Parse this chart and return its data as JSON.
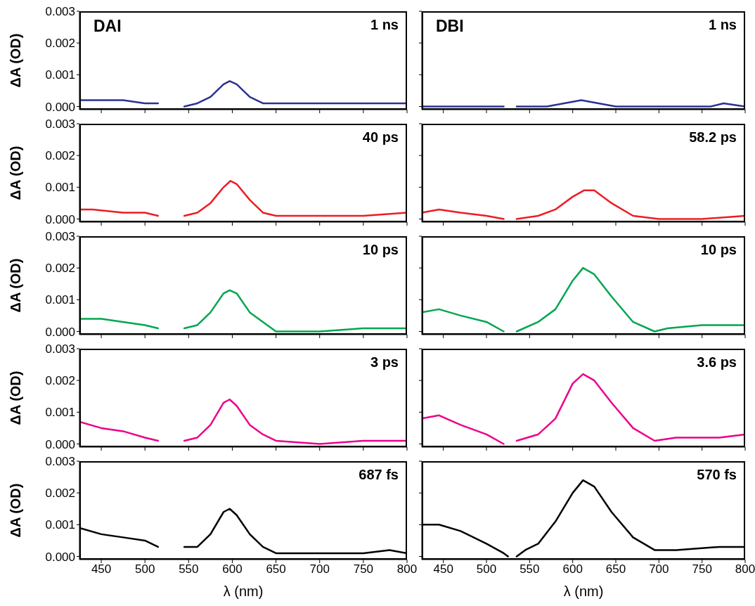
{
  "chart_data": [
    {
      "type": "line",
      "ylabel": "ΔA (OD)",
      "annotations": [
        "DAI",
        "1 ns"
      ],
      "color": "#2b3192",
      "xlim": [
        425,
        800
      ],
      "ylim": [
        -0.0001,
        0.003
      ],
      "yticks": [
        {
          "value": 0,
          "label": "0.000"
        },
        {
          "value": 0.001,
          "label": "0.001"
        },
        {
          "value": 0.002,
          "label": "0.002"
        },
        {
          "value": 0.003,
          "label": "0.003"
        }
      ],
      "xticks": [
        450,
        500,
        550,
        600,
        650,
        700,
        750,
        800
      ],
      "tick_labels": "y",
      "x": [
        425,
        450,
        475,
        500,
        515,
        530,
        545,
        560,
        575,
        590,
        597,
        605,
        620,
        635,
        650,
        700,
        750,
        800
      ],
      "values": [
        0.0002,
        0.0002,
        0.0002,
        0.0001,
        0.0001,
        null,
        0,
        0.0001,
        0.0003,
        0.0007,
        0.0008,
        0.0007,
        0.0003,
        0.0001,
        0.0001,
        0.0001,
        0.0001,
        0.0001
      ]
    },
    {
      "type": "line",
      "annotations": [
        "DBI",
        "1 ns"
      ],
      "color": "#2b3192",
      "xlim": [
        425,
        800
      ],
      "ylim": [
        -0.0001,
        0.003
      ],
      "yticks": [
        0,
        0.001,
        0.002,
        0.003
      ],
      "xticks": [
        450,
        500,
        550,
        600,
        650,
        700,
        750,
        800
      ],
      "tick_labels": false,
      "x": [
        425,
        500,
        520,
        528,
        535,
        570,
        590,
        610,
        630,
        650,
        700,
        760,
        775,
        800
      ],
      "values": [
        0,
        0,
        0,
        null,
        0,
        0,
        0.0001,
        0.0002,
        0.0001,
        0,
        0,
        0,
        0.0001,
        0
      ]
    },
    {
      "type": "line",
      "ylabel": "ΔA (OD)",
      "annotations": [
        "40 ps"
      ],
      "color": "#ed1c24",
      "xlim": [
        425,
        800
      ],
      "ylim": [
        -0.0001,
        0.003
      ],
      "yticks": [
        {
          "value": 0,
          "label": "0.000"
        },
        {
          "value": 0.001,
          "label": "0.001"
        },
        {
          "value": 0.002,
          "label": "0.002"
        },
        {
          "value": 0.003,
          "label": "0.003"
        }
      ],
      "xticks": [
        450,
        500,
        550,
        600,
        650,
        700,
        750,
        800
      ],
      "tick_labels": "y",
      "x": [
        425,
        440,
        475,
        500,
        515,
        530,
        545,
        560,
        575,
        590,
        598,
        605,
        620,
        635,
        650,
        700,
        750,
        800
      ],
      "values": [
        0.0003,
        0.0003,
        0.0002,
        0.0002,
        0.0001,
        null,
        0.0001,
        0.0002,
        0.0005,
        0.001,
        0.0012,
        0.0011,
        0.0006,
        0.0002,
        0.0001,
        0.0001,
        0.0001,
        0.0002
      ]
    },
    {
      "type": "line",
      "annotations": [
        "58.2 ps"
      ],
      "color": "#ed1c24",
      "xlim": [
        425,
        800
      ],
      "ylim": [
        -0.0001,
        0.003
      ],
      "yticks": [
        0,
        0.001,
        0.002,
        0.003
      ],
      "xticks": [
        450,
        500,
        550,
        600,
        650,
        700,
        750,
        800
      ],
      "tick_labels": false,
      "x": [
        425,
        445,
        470,
        500,
        520,
        528,
        535,
        560,
        580,
        600,
        613,
        625,
        645,
        670,
        700,
        750,
        800
      ],
      "values": [
        0.0002,
        0.0003,
        0.0002,
        0.0001,
        0,
        null,
        0,
        0.0001,
        0.0003,
        0.0007,
        0.0009,
        0.0009,
        0.0005,
        0.0001,
        0,
        0,
        0.0001
      ]
    },
    {
      "type": "line",
      "ylabel": "ΔA (OD)",
      "annotations": [
        "10 ps"
      ],
      "color": "#00a651",
      "xlim": [
        425,
        800
      ],
      "ylim": [
        -0.0001,
        0.003
      ],
      "yticks": [
        {
          "value": 0,
          "label": "0.000"
        },
        {
          "value": 0.001,
          "label": "0.001"
        },
        {
          "value": 0.002,
          "label": "0.002"
        },
        {
          "value": 0.003,
          "label": "0.003"
        }
      ],
      "xticks": [
        450,
        500,
        550,
        600,
        650,
        700,
        750,
        800
      ],
      "tick_labels": "y",
      "x": [
        425,
        450,
        475,
        500,
        515,
        530,
        545,
        560,
        575,
        590,
        597,
        605,
        620,
        635,
        650,
        700,
        750,
        785,
        800
      ],
      "values": [
        0.0004,
        0.0004,
        0.0003,
        0.0002,
        0.0001,
        null,
        0.0001,
        0.0002,
        0.0006,
        0.0012,
        0.0013,
        0.0012,
        0.0006,
        0.0003,
        0,
        0,
        0.0001,
        0.0001,
        0.0001
      ]
    },
    {
      "type": "line",
      "annotations": [
        "10 ps"
      ],
      "color": "#00a651",
      "xlim": [
        425,
        800
      ],
      "ylim": [
        -0.0001,
        0.003
      ],
      "yticks": [
        0,
        0.001,
        0.002,
        0.003
      ],
      "xticks": [
        450,
        500,
        550,
        600,
        650,
        700,
        750,
        800
      ],
      "tick_labels": false,
      "x": [
        425,
        445,
        470,
        500,
        520,
        528,
        535,
        560,
        580,
        600,
        612,
        625,
        645,
        670,
        695,
        710,
        750,
        800
      ],
      "values": [
        0.0006,
        0.0007,
        0.0005,
        0.0003,
        0,
        null,
        0,
        0.0003,
        0.0007,
        0.0016,
        0.002,
        0.0018,
        0.0011,
        0.0003,
        0,
        0.0001,
        0.0002,
        0.0002
      ]
    },
    {
      "type": "line",
      "ylabel": "ΔA (OD)",
      "annotations": [
        "3 ps"
      ],
      "color": "#ec008c",
      "xlim": [
        425,
        800
      ],
      "ylim": [
        -0.0001,
        0.003
      ],
      "yticks": [
        {
          "value": 0,
          "label": "0.000"
        },
        {
          "value": 0.001,
          "label": "0.001"
        },
        {
          "value": 0.002,
          "label": "0.002"
        },
        {
          "value": 0.003,
          "label": "0.003"
        }
      ],
      "xticks": [
        450,
        500,
        550,
        600,
        650,
        700,
        750,
        800
      ],
      "tick_labels": "y",
      "x": [
        425,
        450,
        475,
        500,
        515,
        530,
        545,
        560,
        575,
        590,
        597,
        605,
        620,
        635,
        650,
        700,
        750,
        800
      ],
      "values": [
        0.0007,
        0.0005,
        0.0004,
        0.0002,
        0.0001,
        null,
        0.0001,
        0.0002,
        0.0006,
        0.0013,
        0.0014,
        0.0012,
        0.0006,
        0.0003,
        0.0001,
        0,
        0.0001,
        0.0001
      ]
    },
    {
      "type": "line",
      "annotations": [
        "3.6 ps"
      ],
      "color": "#ec008c",
      "xlim": [
        425,
        800
      ],
      "ylim": [
        -0.0001,
        0.003
      ],
      "yticks": [
        0,
        0.001,
        0.002,
        0.003
      ],
      "xticks": [
        450,
        500,
        550,
        600,
        650,
        700,
        750,
        800
      ],
      "tick_labels": false,
      "x": [
        425,
        445,
        470,
        500,
        520,
        528,
        535,
        560,
        580,
        600,
        612,
        625,
        645,
        670,
        695,
        720,
        770,
        800
      ],
      "values": [
        0.0008,
        0.0009,
        0.0006,
        0.0003,
        0,
        null,
        0.0001,
        0.0003,
        0.0008,
        0.0019,
        0.0022,
        0.002,
        0.0013,
        0.0005,
        0.0001,
        0.0002,
        0.0002,
        0.0003
      ]
    },
    {
      "type": "line",
      "ylabel": "ΔA (OD)",
      "xlabel": "λ (nm)",
      "annotations": [
        "687 fs"
      ],
      "color": "#000000",
      "xlim": [
        425,
        800
      ],
      "ylim": [
        -0.0001,
        0.003
      ],
      "yticks": [
        {
          "value": 0,
          "label": "0.000"
        },
        {
          "value": 0.001,
          "label": "0.001"
        },
        {
          "value": 0.002,
          "label": "0.002"
        },
        {
          "value": 0.003,
          "label": "0.003"
        }
      ],
      "xticks": [
        450,
        500,
        550,
        600,
        650,
        700,
        750,
        800
      ],
      "x": [
        425,
        450,
        475,
        500,
        515,
        530,
        545,
        560,
        575,
        590,
        597,
        605,
        620,
        635,
        650,
        700,
        750,
        780,
        800
      ],
      "values": [
        0.0009,
        0.0007,
        0.0006,
        0.0005,
        0.0003,
        null,
        0.0003,
        0.0003,
        0.0007,
        0.0014,
        0.0015,
        0.0013,
        0.0007,
        0.0003,
        0.0001,
        0.0001,
        0.0001,
        0.0002,
        0.0001
      ]
    },
    {
      "type": "line",
      "xlabel": "λ (nm)",
      "annotations": [
        "570 fs"
      ],
      "color": "#000000",
      "xlim": [
        425,
        800
      ],
      "ylim": [
        -0.0001,
        0.003
      ],
      "yticks": [
        0,
        0.001,
        0.002,
        0.003
      ],
      "xticks": [
        450,
        500,
        550,
        600,
        650,
        700,
        750,
        800
      ],
      "tick_labels": "x",
      "x": [
        425,
        445,
        470,
        500,
        520,
        525,
        530,
        535,
        545,
        560,
        580,
        600,
        612,
        625,
        645,
        670,
        695,
        720,
        770,
        800
      ],
      "values": [
        0.001,
        0.001,
        0.0008,
        0.0004,
        0.0001,
        0,
        null,
        0,
        0.0002,
        0.0004,
        0.0011,
        0.002,
        0.0024,
        0.0022,
        0.0014,
        0.0006,
        0.0002,
        0.0002,
        0.0003,
        0.0003
      ]
    }
  ]
}
